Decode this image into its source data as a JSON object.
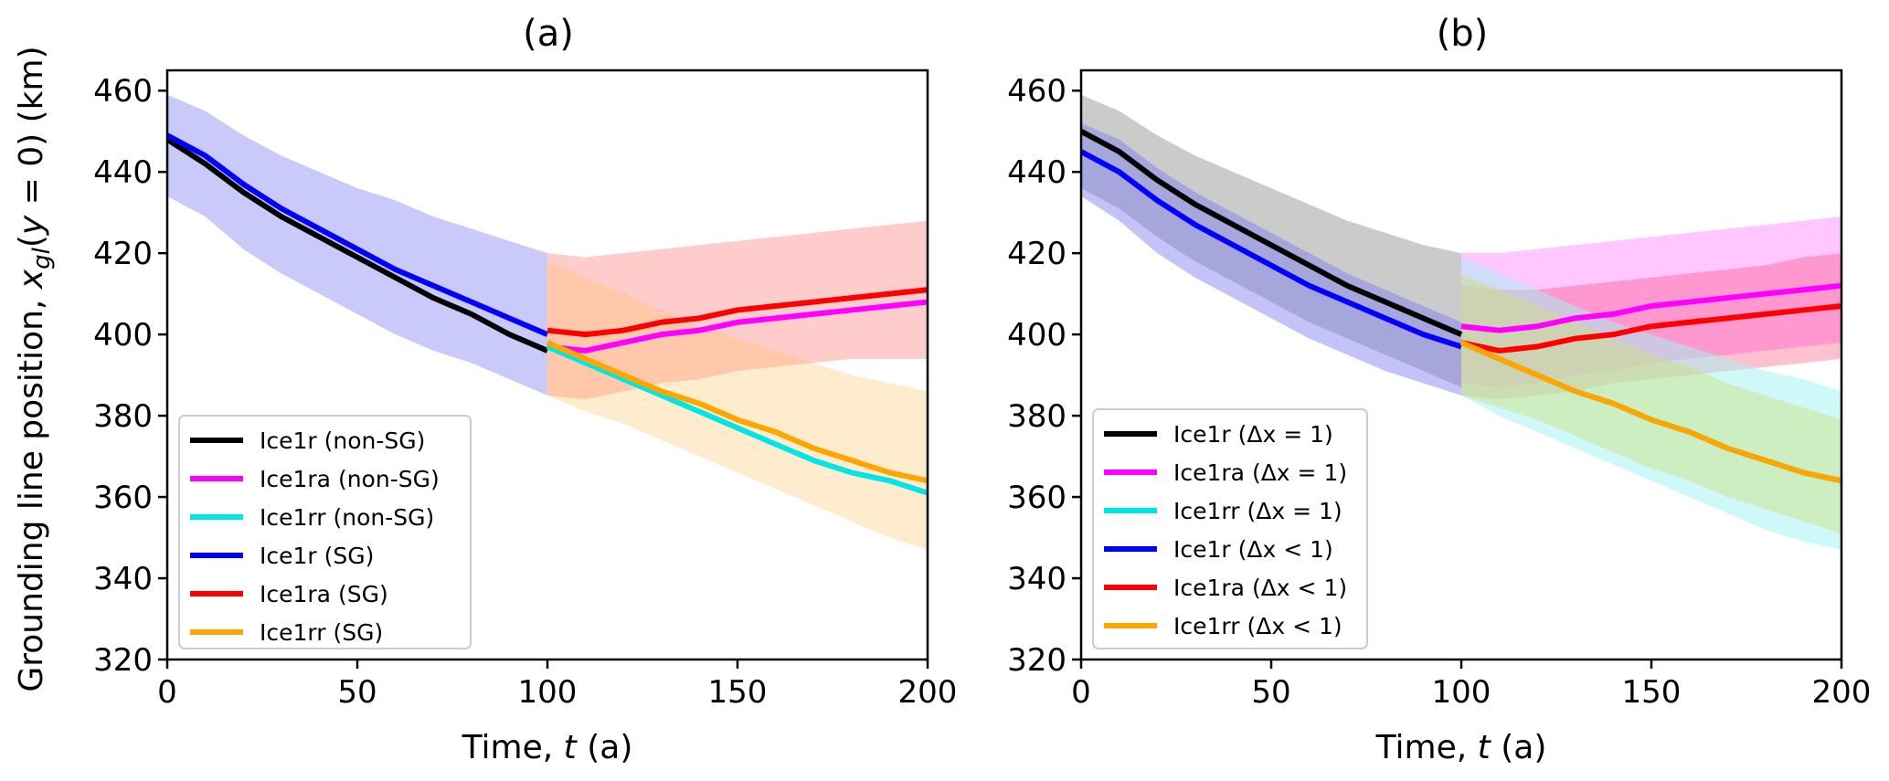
{
  "chart_data": [
    {
      "type": "line",
      "title": "(a)",
      "xlabel": "Time, t (a)",
      "ylabel": "Grounding line position, x_gl(y = 0) (km)",
      "xlim": [
        0,
        200
      ],
      "ylim": [
        320,
        465
      ],
      "xticks": [
        0,
        50,
        100,
        150,
        200
      ],
      "yticks": [
        320,
        340,
        360,
        380,
        400,
        420,
        440,
        460
      ],
      "legend_position": "lower-left",
      "bands": [
        {
          "name": "Ice1r spread",
          "color": "#7b7bf2",
          "opacity": 0.4,
          "x": [
            0,
            10,
            20,
            30,
            40,
            50,
            60,
            70,
            80,
            90,
            100
          ],
          "lower": [
            434,
            429,
            421,
            415,
            410,
            405,
            400,
            396,
            393,
            389,
            385
          ],
          "upper": [
            459,
            455,
            449,
            444,
            440,
            436,
            433,
            429,
            426,
            423,
            420
          ]
        },
        {
          "name": "Ice1ra spread",
          "color": "#ff8080",
          "opacity": 0.4,
          "x": [
            100,
            110,
            120,
            130,
            140,
            150,
            160,
            170,
            180,
            190,
            200
          ],
          "lower": [
            385,
            384,
            386,
            388,
            389,
            391,
            392,
            393,
            394,
            394,
            394
          ],
          "upper": [
            420,
            419,
            420,
            421,
            422,
            423,
            424,
            425,
            426,
            427,
            428
          ]
        },
        {
          "name": "Ice1rr spread",
          "color": "#ffc060",
          "opacity": 0.3,
          "x": [
            100,
            110,
            120,
            130,
            140,
            150,
            160,
            170,
            180,
            190,
            200
          ],
          "lower": [
            385,
            381,
            378,
            374,
            370,
            366,
            362,
            358,
            354,
            350,
            347
          ],
          "upper": [
            418,
            414,
            410,
            406,
            402,
            399,
            396,
            393,
            390,
            388,
            386
          ]
        }
      ],
      "series": [
        {
          "name": "Ice1r (non-SG)",
          "color": "#000000",
          "x": [
            0,
            10,
            20,
            30,
            40,
            50,
            60,
            70,
            80,
            90,
            100
          ],
          "values": [
            448,
            442,
            435,
            429,
            424,
            419,
            414,
            409,
            405,
            400,
            396
          ]
        },
        {
          "name": "Ice1ra (non-SG)",
          "color": "#ff00ff",
          "x": [
            100,
            110,
            120,
            130,
            140,
            150,
            160,
            170,
            180,
            190,
            200
          ],
          "values": [
            397,
            396,
            398,
            400,
            401,
            403,
            404,
            405,
            406,
            407,
            408
          ]
        },
        {
          "name": "Ice1rr (non-SG)",
          "color": "#00e5e5",
          "x": [
            100,
            110,
            120,
            130,
            140,
            150,
            160,
            170,
            180,
            190,
            200
          ],
          "values": [
            397,
            393,
            389,
            385,
            381,
            377,
            373,
            369,
            366,
            364,
            361
          ]
        },
        {
          "name": "Ice1r (SG)",
          "color": "#0000ff",
          "x": [
            0,
            10,
            20,
            30,
            40,
            50,
            60,
            70,
            80,
            90,
            100
          ],
          "values": [
            449,
            444,
            437,
            431,
            426,
            421,
            416,
            412,
            408,
            404,
            400
          ]
        },
        {
          "name": "Ice1ra (SG)",
          "color": "#ff0000",
          "x": [
            100,
            110,
            120,
            130,
            140,
            150,
            160,
            170,
            180,
            190,
            200
          ],
          "values": [
            401,
            400,
            401,
            403,
            404,
            406,
            407,
            408,
            409,
            410,
            411
          ]
        },
        {
          "name": "Ice1rr (SG)",
          "color": "#ffa500",
          "x": [
            100,
            110,
            120,
            130,
            140,
            150,
            160,
            170,
            180,
            190,
            200
          ],
          "values": [
            398,
            394,
            390,
            386,
            383,
            379,
            376,
            372,
            369,
            366,
            364
          ]
        }
      ]
    },
    {
      "type": "line",
      "title": "(b)",
      "xlabel": "Time, t (a)",
      "ylabel": "",
      "xlim": [
        0,
        200
      ],
      "ylim": [
        320,
        465
      ],
      "xticks": [
        0,
        50,
        100,
        150,
        200
      ],
      "yticks": [
        320,
        340,
        360,
        380,
        400,
        420,
        440,
        460
      ],
      "legend_position": "lower-left",
      "bands": [
        {
          "name": "Ice1r (Δx=1) spread",
          "color": "#a0a0a0",
          "opacity": 0.55,
          "x": [
            0,
            10,
            20,
            30,
            40,
            50,
            60,
            70,
            80,
            90,
            100
          ],
          "lower": [
            436,
            431,
            424,
            418,
            413,
            408,
            403,
            399,
            395,
            391,
            387
          ],
          "upper": [
            459,
            455,
            449,
            444,
            440,
            436,
            432,
            428,
            425,
            422,
            420
          ]
        },
        {
          "name": "Ice1r (Δx<1) spread",
          "color": "#7b7bf2",
          "opacity": 0.45,
          "x": [
            0,
            10,
            20,
            30,
            40,
            50,
            60,
            70,
            80,
            90,
            100
          ],
          "lower": [
            434,
            428,
            420,
            414,
            409,
            404,
            399,
            395,
            391,
            388,
            385
          ],
          "upper": [
            452,
            448,
            441,
            435,
            430,
            425,
            420,
            415,
            411,
            407,
            403
          ]
        },
        {
          "name": "Ice1ra (Δx=1) spread",
          "color": "#ff80ff",
          "opacity": 0.45,
          "x": [
            100,
            110,
            120,
            130,
            140,
            150,
            160,
            170,
            180,
            190,
            200
          ],
          "lower": [
            388,
            387,
            388,
            390,
            391,
            393,
            394,
            395,
            396,
            397,
            398
          ],
          "upper": [
            420,
            420,
            421,
            422,
            423,
            424,
            425,
            426,
            427,
            428,
            429
          ]
        },
        {
          "name": "Ice1ra (Δx<1) spread",
          "color": "#ff3060",
          "opacity": 0.3,
          "x": [
            100,
            110,
            120,
            130,
            140,
            150,
            160,
            170,
            180,
            190,
            200
          ],
          "lower": [
            385,
            384,
            385,
            386,
            388,
            389,
            390,
            391,
            392,
            393,
            394
          ],
          "upper": [
            412,
            411,
            411,
            412,
            413,
            414,
            415,
            416,
            417,
            419,
            420
          ]
        },
        {
          "name": "Ice1rr (Δx=1) spread",
          "color": "#a0f4f4",
          "opacity": 0.5,
          "x": [
            100,
            110,
            120,
            130,
            140,
            150,
            160,
            170,
            180,
            190,
            200
          ],
          "lower": [
            385,
            380,
            376,
            372,
            368,
            364,
            360,
            356,
            352,
            349,
            347
          ],
          "upper": [
            419,
            415,
            411,
            407,
            403,
            400,
            397,
            394,
            391,
            389,
            386
          ]
        },
        {
          "name": "Ice1rr (Δx<1) spread",
          "color": "#c9e07a",
          "opacity": 0.45,
          "x": [
            100,
            110,
            120,
            130,
            140,
            150,
            160,
            170,
            180,
            190,
            200
          ],
          "lower": [
            385,
            382,
            379,
            375,
            371,
            367,
            364,
            360,
            357,
            354,
            351
          ],
          "upper": [
            415,
            411,
            407,
            403,
            399,
            395,
            392,
            388,
            385,
            382,
            379
          ]
        }
      ],
      "series": [
        {
          "name": "Ice1r (Δx = 1)",
          "color": "#000000",
          "x": [
            0,
            10,
            20,
            30,
            40,
            50,
            60,
            70,
            80,
            90,
            100
          ],
          "values": [
            450,
            445,
            438,
            432,
            427,
            422,
            417,
            412,
            408,
            404,
            400
          ]
        },
        {
          "name": "Ice1ra (Δx = 1)",
          "color": "#ff00ff",
          "x": [
            100,
            110,
            120,
            130,
            140,
            150,
            160,
            170,
            180,
            190,
            200
          ],
          "values": [
            402,
            401,
            402,
            404,
            405,
            407,
            408,
            409,
            410,
            411,
            412
          ]
        },
        {
          "name": "Ice1rr (Δx = 1)",
          "color": "#00e5e5",
          "x": [
            100,
            110,
            120,
            130,
            140,
            150,
            160,
            170,
            180,
            190,
            200
          ],
          "values": [
            398,
            394,
            390,
            386,
            383,
            379,
            376,
            372,
            369,
            366,
            364
          ]
        },
        {
          "name": "Ice1r (Δx < 1)",
          "color": "#0000ff",
          "x": [
            0,
            10,
            20,
            30,
            40,
            50,
            60,
            70,
            80,
            90,
            100
          ],
          "values": [
            445,
            440,
            433,
            427,
            422,
            417,
            412,
            408,
            404,
            400,
            397
          ]
        },
        {
          "name": "Ice1ra (Δx < 1)",
          "color": "#ff0000",
          "x": [
            100,
            110,
            120,
            130,
            140,
            150,
            160,
            170,
            180,
            190,
            200
          ],
          "values": [
            398,
            396,
            397,
            399,
            400,
            402,
            403,
            404,
            405,
            406,
            407
          ]
        },
        {
          "name": "Ice1rr (Δx < 1)",
          "color": "#ffa500",
          "x": [
            100,
            110,
            120,
            130,
            140,
            150,
            160,
            170,
            180,
            190,
            200
          ],
          "values": [
            398,
            394,
            390,
            386,
            383,
            379,
            376,
            372,
            369,
            366,
            364
          ]
        }
      ]
    }
  ]
}
